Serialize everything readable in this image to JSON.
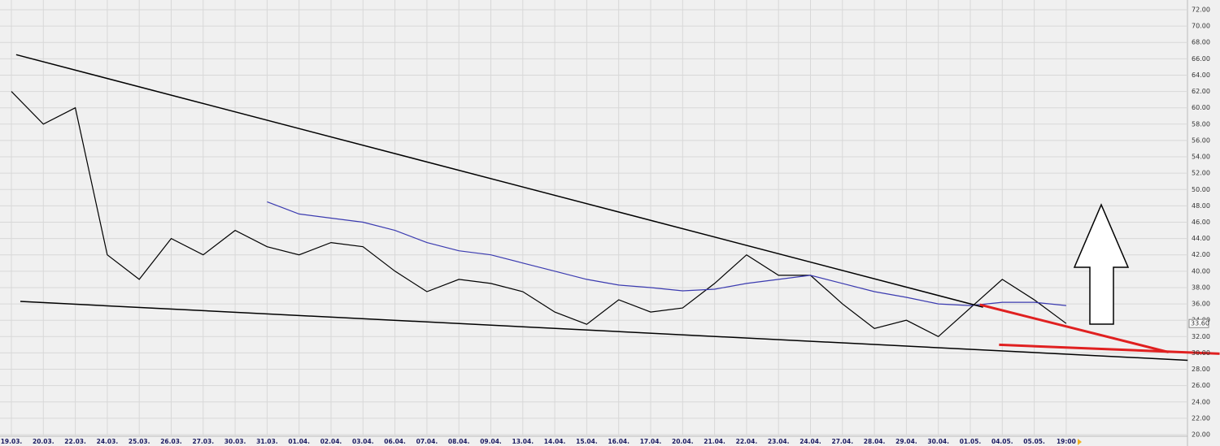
{
  "chart_data": {
    "type": "line",
    "categories": [
      "19.03.",
      "20.03.",
      "22.03.",
      "24.03.",
      "25.03.",
      "26.03.",
      "27.03.",
      "30.03.",
      "31.03.",
      "01.04.",
      "02.04.",
      "03.04.",
      "06.04.",
      "07.04.",
      "08.04.",
      "09.04.",
      "13.04.",
      "14.04.",
      "15.04.",
      "16.04.",
      "17.04.",
      "20.04.",
      "21.04.",
      "22.04.",
      "23.04.",
      "24.04.",
      "27.04.",
      "28.04.",
      "29.04.",
      "30.04.",
      "01.05.",
      "04.05.",
      "05.05.",
      "19:00"
    ],
    "series": [
      {
        "color": "#000000",
        "values": [
          62,
          58,
          60,
          42,
          39,
          44,
          42,
          45,
          43,
          42,
          43.5,
          43,
          40,
          37.5,
          39,
          38.5,
          37.5,
          35,
          33.5,
          36.5,
          35,
          35.5,
          38.5,
          42,
          39.5,
          39.5,
          36,
          33,
          34,
          32,
          35.5,
          39,
          36.5,
          33.6
        ]
      },
      {
        "color": "#3b3bb0",
        "values": [
          null,
          null,
          null,
          null,
          null,
          null,
          null,
          null,
          48.5,
          47,
          46.5,
          46,
          45,
          43.5,
          42.5,
          42,
          41,
          40,
          39,
          38.3,
          38,
          37.6,
          37.8,
          38.5,
          39,
          39.5,
          38.5,
          37.5,
          36.8,
          36,
          35.8,
          36.2,
          36.2,
          35.8
        ]
      }
    ],
    "trendlines": [
      {
        "color": "#000000",
        "x": [
          0.15,
          30.4
        ],
        "values": [
          66.5,
          35.6
        ]
      },
      {
        "color": "#000000",
        "x": [
          0.28,
          36.8
        ],
        "values": [
          36.3,
          29.1
        ]
      },
      {
        "color": "#e02020",
        "x": [
          30.3,
          36.2
        ],
        "values": [
          35.9,
          30.1
        ]
      },
      {
        "color": "#e02020",
        "x": [
          30.9,
          37.8
        ],
        "values": [
          31,
          29.9
        ]
      }
    ],
    "last_price": {
      "value": 33.6,
      "label": "33.60"
    },
    "ylim": [
      20,
      72
    ],
    "yticks": [
      {
        "value": 20,
        "label": "20.00"
      },
      {
        "value": 22,
        "label": "22.00"
      },
      {
        "value": 24,
        "label": "24.00"
      },
      {
        "value": 26,
        "label": "26.00"
      },
      {
        "value": 28,
        "label": "28.00"
      },
      {
        "value": 30,
        "label": "30.00"
      },
      {
        "value": 32,
        "label": "32.00"
      },
      {
        "value": 34,
        "label": "34.00"
      },
      {
        "value": 36,
        "label": "36.00"
      },
      {
        "value": 38,
        "label": "38.00"
      },
      {
        "value": 40,
        "label": "40.00"
      },
      {
        "value": 42,
        "label": "42.00"
      },
      {
        "value": 44,
        "label": "44.00"
      },
      {
        "value": 46,
        "label": "46.00"
      },
      {
        "value": 48,
        "label": "48.00"
      },
      {
        "value": 50,
        "label": "50.00"
      },
      {
        "value": 52,
        "label": "52.00"
      },
      {
        "value": 54,
        "label": "54.00"
      },
      {
        "value": 56,
        "label": "56.00"
      },
      {
        "value": 58,
        "label": "58.00"
      },
      {
        "value": 60,
        "label": "60.00"
      },
      {
        "value": 62,
        "label": "62.00"
      },
      {
        "value": 64,
        "label": "64.00"
      },
      {
        "value": 66,
        "label": "66.00"
      },
      {
        "value": 68,
        "label": "68.00"
      },
      {
        "value": 70,
        "label": "70.00"
      },
      {
        "value": 72,
        "label": "72.00"
      }
    ],
    "grid": true
  }
}
